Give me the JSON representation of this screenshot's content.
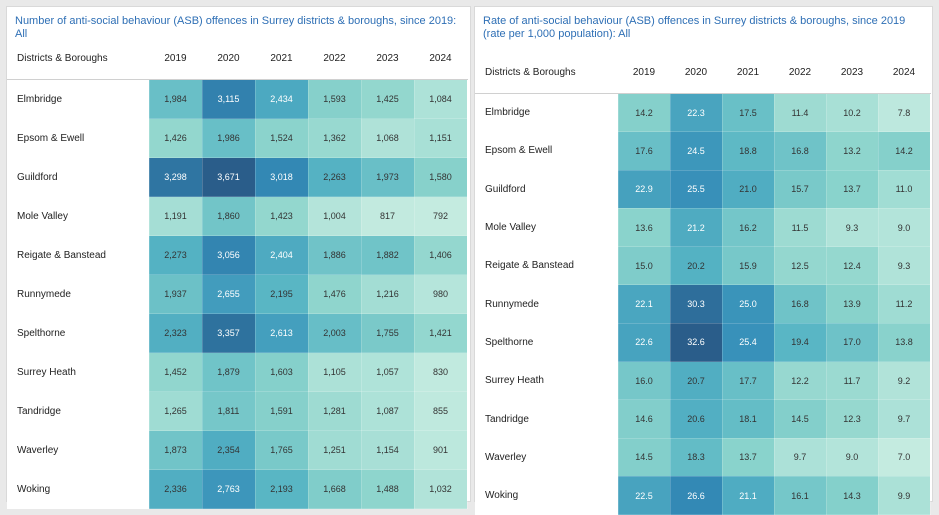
{
  "chart_data": [
    {
      "type": "heatmap",
      "title": "Number of anti-social behaviour (ASB) offences in Surrey districts & boroughs, since 2019: All",
      "row_header": "Districts & Boroughs",
      "columns": [
        "2019",
        "2020",
        "2021",
        "2022",
        "2023",
        "2024"
      ],
      "rows": [
        {
          "name": "Elmbridge",
          "values": [
            1984,
            3115,
            2434,
            1593,
            1425,
            1084
          ],
          "labels": [
            "1,984",
            "3,115",
            "2,434",
            "1,593",
            "1,425",
            "1,084"
          ]
        },
        {
          "name": "Epsom & Ewell",
          "values": [
            1426,
            1986,
            1524,
            1362,
            1068,
            1151
          ],
          "labels": [
            "1,426",
            "1,986",
            "1,524",
            "1,362",
            "1,068",
            "1,151"
          ]
        },
        {
          "name": "Guildford",
          "values": [
            3298,
            3671,
            3018,
            2263,
            1973,
            1580
          ],
          "labels": [
            "3,298",
            "3,671",
            "3,018",
            "2,263",
            "1,973",
            "1,580"
          ]
        },
        {
          "name": "Mole Valley",
          "values": [
            1191,
            1860,
            1423,
            1004,
            817,
            792
          ],
          "labels": [
            "1,191",
            "1,860",
            "1,423",
            "1,004",
            "817",
            "792"
          ]
        },
        {
          "name": "Reigate & Banstead",
          "values": [
            2273,
            3056,
            2404,
            1886,
            1882,
            1406
          ],
          "labels": [
            "2,273",
            "3,056",
            "2,404",
            "1,886",
            "1,882",
            "1,406"
          ]
        },
        {
          "name": "Runnymede",
          "values": [
            1937,
            2655,
            2195,
            1476,
            1216,
            980
          ],
          "labels": [
            "1,937",
            "2,655",
            "2,195",
            "1,476",
            "1,216",
            "980"
          ]
        },
        {
          "name": "Spelthorne",
          "values": [
            2323,
            3357,
            2613,
            2003,
            1755,
            1421
          ],
          "labels": [
            "2,323",
            "3,357",
            "2,613",
            "2,003",
            "1,755",
            "1,421"
          ]
        },
        {
          "name": "Surrey Heath",
          "values": [
            1452,
            1879,
            1603,
            1105,
            1057,
            830
          ],
          "labels": [
            "1,452",
            "1,879",
            "1,603",
            "1,105",
            "1,057",
            "830"
          ]
        },
        {
          "name": "Tandridge",
          "values": [
            1265,
            1811,
            1591,
            1281,
            1087,
            855
          ],
          "labels": [
            "1,265",
            "1,811",
            "1,591",
            "1,281",
            "1,087",
            "855"
          ]
        },
        {
          "name": "Waverley",
          "values": [
            1873,
            2354,
            1765,
            1251,
            1154,
            901
          ],
          "labels": [
            "1,873",
            "2,354",
            "1,765",
            "1,251",
            "1,154",
            "901"
          ]
        },
        {
          "name": "Woking",
          "values": [
            2336,
            2763,
            2193,
            1668,
            1488,
            1032
          ],
          "labels": [
            "2,336",
            "2,763",
            "2,193",
            "1,668",
            "1,488",
            "1,032"
          ]
        }
      ],
      "color_low": "#c4ebe0",
      "color_high": "#2a5d8a"
    },
    {
      "type": "heatmap",
      "title": "Rate of anti-social behaviour (ASB) offences in Surrey districts & boroughs, since 2019 (rate per 1,000 population): All",
      "row_header": "Districts & Boroughs",
      "columns": [
        "2019",
        "2020",
        "2021",
        "2022",
        "2023",
        "2024"
      ],
      "rows": [
        {
          "name": "Elmbridge",
          "values": [
            14.2,
            22.3,
            17.5,
            11.4,
            10.2,
            7.8
          ],
          "labels": [
            "14.2",
            "22.3",
            "17.5",
            "11.4",
            "10.2",
            "7.8"
          ]
        },
        {
          "name": "Epsom & Ewell",
          "values": [
            17.6,
            24.5,
            18.8,
            16.8,
            13.2,
            14.2
          ],
          "labels": [
            "17.6",
            "24.5",
            "18.8",
            "16.8",
            "13.2",
            "14.2"
          ]
        },
        {
          "name": "Guildford",
          "values": [
            22.9,
            25.5,
            21.0,
            15.7,
            13.7,
            11.0
          ],
          "labels": [
            "22.9",
            "25.5",
            "21.0",
            "15.7",
            "13.7",
            "11.0"
          ]
        },
        {
          "name": "Mole Valley",
          "values": [
            13.6,
            21.2,
            16.2,
            11.5,
            9.3,
            9.0
          ],
          "labels": [
            "13.6",
            "21.2",
            "16.2",
            "11.5",
            "9.3",
            "9.0"
          ]
        },
        {
          "name": "Reigate & Banstead",
          "values": [
            15.0,
            20.2,
            15.9,
            12.5,
            12.4,
            9.3
          ],
          "labels": [
            "15.0",
            "20.2",
            "15.9",
            "12.5",
            "12.4",
            "9.3"
          ]
        },
        {
          "name": "Runnymede",
          "values": [
            22.1,
            30.3,
            25.0,
            16.8,
            13.9,
            11.2
          ],
          "labels": [
            "22.1",
            "30.3",
            "25.0",
            "16.8",
            "13.9",
            "11.2"
          ]
        },
        {
          "name": "Spelthorne",
          "values": [
            22.6,
            32.6,
            25.4,
            19.4,
            17.0,
            13.8
          ],
          "labels": [
            "22.6",
            "32.6",
            "25.4",
            "19.4",
            "17.0",
            "13.8"
          ]
        },
        {
          "name": "Surrey Heath",
          "values": [
            16.0,
            20.7,
            17.7,
            12.2,
            11.7,
            9.2
          ],
          "labels": [
            "16.0",
            "20.7",
            "17.7",
            "12.2",
            "11.7",
            "9.2"
          ]
        },
        {
          "name": "Tandridge",
          "values": [
            14.6,
            20.6,
            18.1,
            14.5,
            12.3,
            9.7
          ],
          "labels": [
            "14.6",
            "20.6",
            "18.1",
            "14.5",
            "12.3",
            "9.7"
          ]
        },
        {
          "name": "Waverley",
          "values": [
            14.5,
            18.3,
            13.7,
            9.7,
            9.0,
            7.0
          ],
          "labels": [
            "14.5",
            "18.3",
            "13.7",
            "9.7",
            "9.0",
            "7.0"
          ]
        },
        {
          "name": "Woking",
          "values": [
            22.5,
            26.6,
            21.1,
            16.1,
            14.3,
            9.9
          ],
          "labels": [
            "22.5",
            "26.6",
            "21.1",
            "16.1",
            "14.3",
            "9.9"
          ]
        }
      ],
      "color_low": "#c4ebe0",
      "color_high": "#2a5d8a"
    }
  ]
}
